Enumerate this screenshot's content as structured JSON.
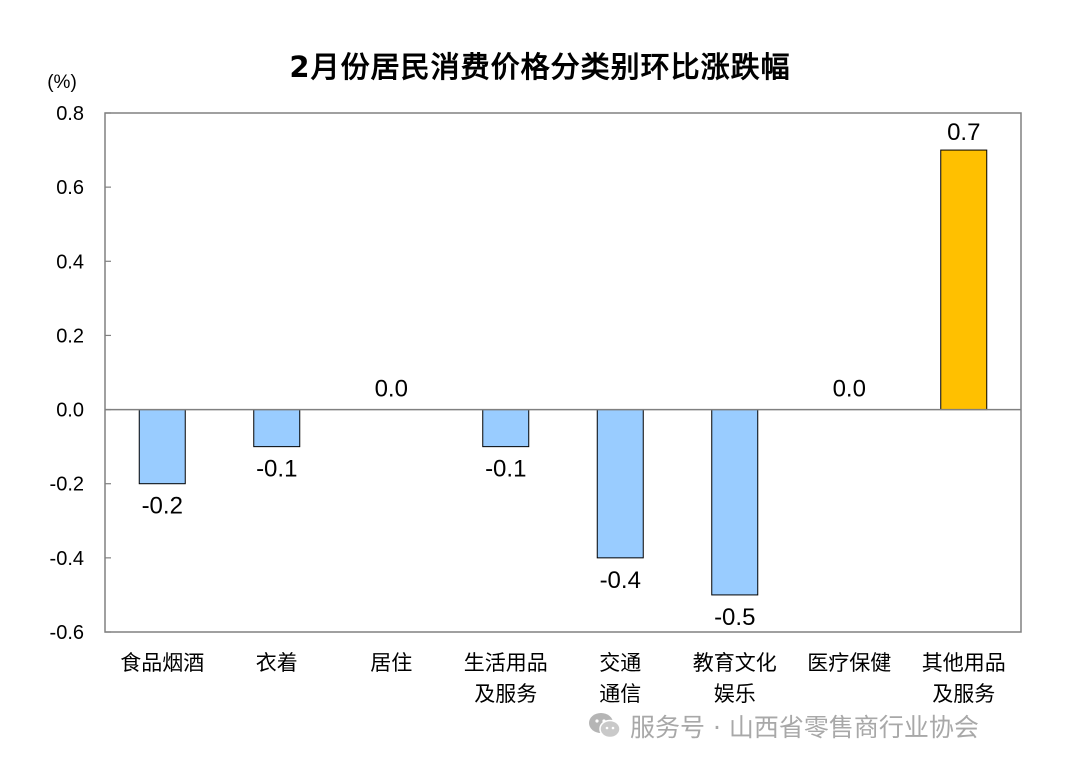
{
  "chart_data": {
    "type": "bar",
    "title": "2月份居民消费价格分类别环比涨跌幅",
    "unit_label": "(%)",
    "categories": [
      [
        "食品烟酒"
      ],
      [
        "衣着"
      ],
      [
        "居住"
      ],
      [
        "生活用品",
        "及服务"
      ],
      [
        "交通",
        "通信"
      ],
      [
        "教育文化",
        "娱乐"
      ],
      [
        "医疗保健"
      ],
      [
        "其他用品",
        "及服务"
      ]
    ],
    "values": [
      -0.2,
      -0.1,
      0.0,
      -0.1,
      -0.4,
      -0.5,
      0.0,
      0.7
    ],
    "data_labels": [
      "-0.2",
      "-0.1",
      "0.0",
      "-0.1",
      "-0.4",
      "-0.5",
      "0.0",
      "0.7"
    ],
    "ylim": [
      -0.6,
      0.8
    ],
    "yticks": [
      "0.8",
      "0.6",
      "0.4",
      "0.2",
      "0.0",
      "-0.2",
      "-0.4",
      "-0.6"
    ],
    "ytick_values": [
      0.8,
      0.6,
      0.4,
      0.2,
      0.0,
      -0.2,
      -0.4,
      -0.6
    ],
    "grid": false,
    "colors": {
      "negative_bar": "#99CCFF",
      "positive_bar": "#FFC000",
      "bar_edge": "#000000",
      "axis": "#808080"
    }
  },
  "watermark": {
    "icon": "wechat-icon",
    "text": "服务号 · 山西省零售商行业协会"
  }
}
